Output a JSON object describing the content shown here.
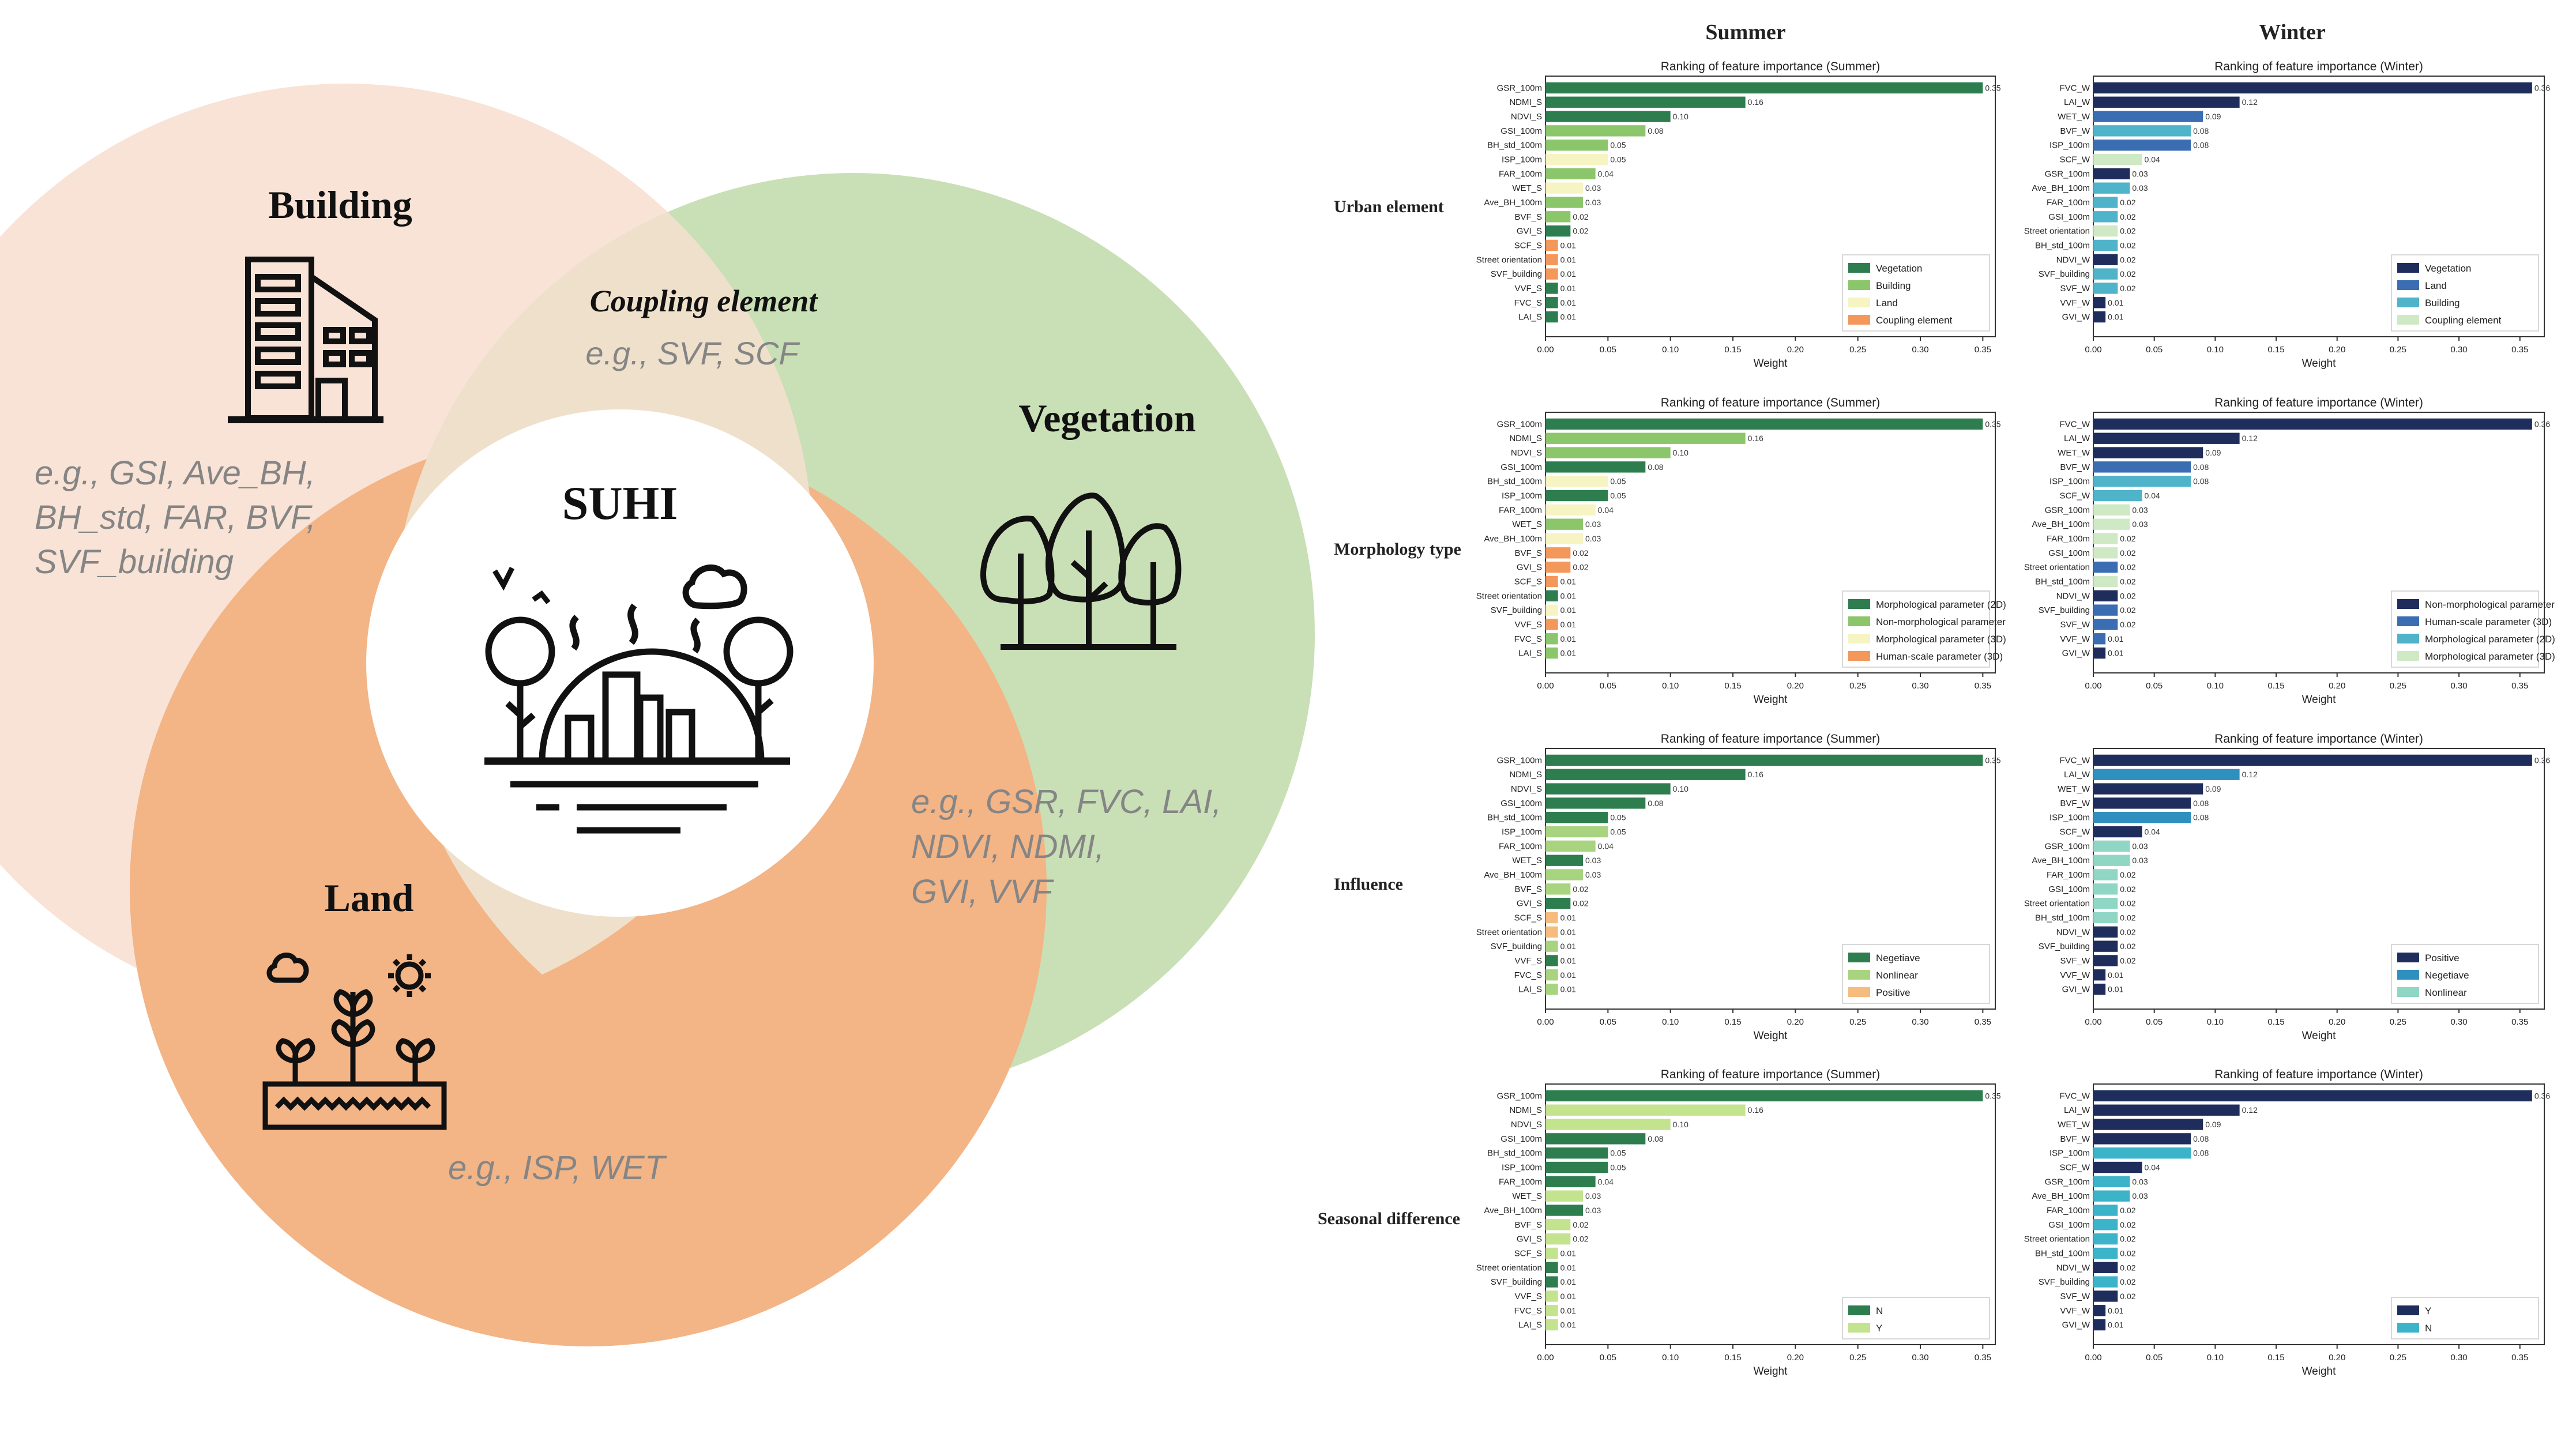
{
  "venn": {
    "building": {
      "title": "Building",
      "examples": [
        "e.g., GSI, Ave_BH,",
        "BH_std, FAR, BVF,",
        "SVF_building"
      ]
    },
    "vegetation": {
      "title": "Vegetation",
      "examples": [
        "e.g., GSR, FVC, LAI,",
        "NDVI, NDMI,",
        "GVI, VVF"
      ]
    },
    "land": {
      "title": "Land",
      "examples": [
        "e.g., ISP, WET"
      ]
    },
    "coupling": {
      "title": "Coupling element",
      "examples": "e.g., SVF, SCF"
    },
    "center": {
      "title": "SUHI"
    },
    "colors": {
      "building": "#f8e3d6",
      "vegetation": "#c9dfb6",
      "land": "#f3b486",
      "overlap": "#efe0cc",
      "center": "#ffffff"
    }
  },
  "columns": {
    "summer": "Summer",
    "winter": "Winter"
  },
  "row_labels": [
    "Urban element",
    "Morphology type",
    "Influence",
    "Seasonal difference"
  ],
  "chart_data": [
    {
      "type": "bar",
      "season": "summer",
      "grouping": "Urban element",
      "title": "Ranking of feature importance (Summer)",
      "xlabel": "Weight",
      "xlim": [
        0,
        0.36
      ],
      "xticks": [
        "0.00",
        "0.05",
        "0.10",
        "0.15",
        "0.20",
        "0.25",
        "0.30",
        "0.35"
      ],
      "categories": [
        "GSR_100m",
        "NDMI_S",
        "NDVI_S",
        "GSI_100m",
        "BH_std_100m",
        "ISP_100m",
        "FAR_100m",
        "WET_S",
        "Ave_BH_100m",
        "BVF_S",
        "GVI_S",
        "SCF_S",
        "Street orientation",
        "SVF_building",
        "VVF_S",
        "FVC_S",
        "LAI_S"
      ],
      "values": [
        0.35,
        0.16,
        0.1,
        0.08,
        0.05,
        0.05,
        0.04,
        0.03,
        0.03,
        0.02,
        0.02,
        0.01,
        0.01,
        0.01,
        0.01,
        0.01,
        0.01
      ],
      "value_labels": [
        "0.35",
        "0.16",
        "0.10",
        "0.08",
        "0.05",
        "0.05",
        "0.04",
        "0.03",
        "0.03",
        "0.02",
        "0.02",
        "0.01",
        "0.01",
        "0.01",
        "0.01",
        "0.01",
        "0.01"
      ],
      "groups": [
        0,
        0,
        0,
        1,
        1,
        2,
        1,
        2,
        1,
        1,
        0,
        3,
        3,
        3,
        0,
        0,
        0
      ],
      "legend": [
        {
          "name": "Vegetation",
          "color": "#2e7d4f"
        },
        {
          "name": "Building",
          "color": "#8cc66b"
        },
        {
          "name": "Land",
          "color": "#f7f4c3"
        },
        {
          "name": "Coupling element",
          "color": "#f4975a"
        }
      ],
      "legend_position": "bottom-right"
    },
    {
      "type": "bar",
      "season": "winter",
      "grouping": "Urban element",
      "title": "Ranking of feature importance (Winter)",
      "xlabel": "Weight",
      "xlim": [
        0,
        0.37
      ],
      "xticks": [
        "0.00",
        "0.05",
        "0.10",
        "0.15",
        "0.20",
        "0.25",
        "0.30",
        "0.35"
      ],
      "categories": [
        "FVC_W",
        "LAI_W",
        "WET_W",
        "BVF_W",
        "ISP_100m",
        "SCF_W",
        "GSR_100m",
        "Ave_BH_100m",
        "FAR_100m",
        "GSI_100m",
        "Street orientation",
        "BH_std_100m",
        "NDVI_W",
        "SVF_building",
        "SVF_W",
        "VVF_W",
        "GVI_W"
      ],
      "values": [
        0.36,
        0.12,
        0.09,
        0.08,
        0.08,
        0.04,
        0.03,
        0.03,
        0.02,
        0.02,
        0.02,
        0.02,
        0.02,
        0.02,
        0.02,
        0.01,
        0.01
      ],
      "value_labels": [
        "0.36",
        "0.12",
        "0.09",
        "0.08",
        "0.08",
        "0.04",
        "0.03",
        "0.03",
        "0.02",
        "0.02",
        "0.02",
        "0.02",
        "0.02",
        "0.02",
        "0.02",
        "0.01",
        "0.01"
      ],
      "groups": [
        0,
        0,
        1,
        2,
        1,
        3,
        0,
        2,
        2,
        2,
        3,
        2,
        0,
        2,
        2,
        0,
        0
      ],
      "legend": [
        {
          "name": "Vegetation",
          "color": "#1f2d5c"
        },
        {
          "name": "Land",
          "color": "#3a6db2"
        },
        {
          "name": "Building",
          "color": "#4fb3c9"
        },
        {
          "name": "Coupling element",
          "color": "#cfe9c5"
        }
      ],
      "legend_position": "bottom-right"
    },
    {
      "type": "bar",
      "season": "summer",
      "grouping": "Morphology type",
      "title": "Ranking of feature importance (Summer)",
      "xlabel": "Weight",
      "xlim": [
        0,
        0.36
      ],
      "xticks": [
        "0.00",
        "0.05",
        "0.10",
        "0.15",
        "0.20",
        "0.25",
        "0.30",
        "0.35"
      ],
      "categories": [
        "GSR_100m",
        "NDMI_S",
        "NDVI_S",
        "GSI_100m",
        "BH_std_100m",
        "ISP_100m",
        "FAR_100m",
        "WET_S",
        "Ave_BH_100m",
        "BVF_S",
        "GVI_S",
        "SCF_S",
        "Street orientation",
        "SVF_building",
        "VVF_S",
        "FVC_S",
        "LAI_S"
      ],
      "values": [
        0.35,
        0.16,
        0.1,
        0.08,
        0.05,
        0.05,
        0.04,
        0.03,
        0.03,
        0.02,
        0.02,
        0.01,
        0.01,
        0.01,
        0.01,
        0.01,
        0.01
      ],
      "value_labels": [
        "0.35",
        "0.16",
        "0.10",
        "0.08",
        "0.05",
        "0.05",
        "0.04",
        "0.03",
        "0.03",
        "0.02",
        "0.02",
        "0.01",
        "0.01",
        "0.01",
        "0.01",
        "0.01",
        "0.01"
      ],
      "groups": [
        0,
        1,
        1,
        0,
        2,
        0,
        2,
        1,
        2,
        3,
        3,
        3,
        0,
        2,
        3,
        1,
        1
      ],
      "legend": [
        {
          "name": "Morphological parameter (2D)",
          "color": "#2e7d4f"
        },
        {
          "name": "Non-morphological parameter",
          "color": "#8cc66b"
        },
        {
          "name": "Morphological parameter (3D)",
          "color": "#f7f4c3"
        },
        {
          "name": "Human-scale parameter (3D)",
          "color": "#f4975a"
        }
      ],
      "legend_position": "bottom-right"
    },
    {
      "type": "bar",
      "season": "winter",
      "grouping": "Morphology type",
      "title": "Ranking of feature importance (Winter)",
      "xlabel": "Weight",
      "xlim": [
        0,
        0.37
      ],
      "xticks": [
        "0.00",
        "0.05",
        "0.10",
        "0.15",
        "0.20",
        "0.25",
        "0.30",
        "0.35"
      ],
      "categories": [
        "FVC_W",
        "LAI_W",
        "WET_W",
        "BVF_W",
        "ISP_100m",
        "SCF_W",
        "GSR_100m",
        "Ave_BH_100m",
        "FAR_100m",
        "GSI_100m",
        "Street orientation",
        "BH_std_100m",
        "NDVI_W",
        "SVF_building",
        "SVF_W",
        "VVF_W",
        "GVI_W"
      ],
      "values": [
        0.36,
        0.12,
        0.09,
        0.08,
        0.08,
        0.04,
        0.03,
        0.03,
        0.02,
        0.02,
        0.02,
        0.02,
        0.02,
        0.02,
        0.02,
        0.01,
        0.01
      ],
      "value_labels": [
        "0.36",
        "0.12",
        "0.09",
        "0.08",
        "0.08",
        "0.04",
        "0.03",
        "0.03",
        "0.02",
        "0.02",
        "0.02",
        "0.02",
        "0.02",
        "0.02",
        "0.02",
        "0.01",
        "0.01"
      ],
      "groups": [
        0,
        0,
        0,
        1,
        2,
        2,
        3,
        3,
        3,
        3,
        1,
        3,
        0,
        1,
        1,
        1,
        0
      ],
      "legend": [
        {
          "name": "Non-morphological parameter",
          "color": "#1f2d5c"
        },
        {
          "name": "Human-scale parameter (3D)",
          "color": "#3a6db2"
        },
        {
          "name": "Morphological parameter (2D)",
          "color": "#4fb3c9"
        },
        {
          "name": "Morphological parameter (3D)",
          "color": "#cfe9c5"
        }
      ],
      "legend_position": "bottom-right"
    },
    {
      "type": "bar",
      "season": "summer",
      "grouping": "Influence",
      "title": "Ranking of feature importance (Summer)",
      "xlabel": "Weight",
      "xlim": [
        0,
        0.36
      ],
      "xticks": [
        "0.00",
        "0.05",
        "0.10",
        "0.15",
        "0.20",
        "0.25",
        "0.30",
        "0.35"
      ],
      "categories": [
        "GSR_100m",
        "NDMI_S",
        "NDVI_S",
        "GSI_100m",
        "BH_std_100m",
        "ISP_100m",
        "FAR_100m",
        "WET_S",
        "Ave_BH_100m",
        "BVF_S",
        "GVI_S",
        "SCF_S",
        "Street orientation",
        "SVF_building",
        "VVF_S",
        "FVC_S",
        "LAI_S"
      ],
      "values": [
        0.35,
        0.16,
        0.1,
        0.08,
        0.05,
        0.05,
        0.04,
        0.03,
        0.03,
        0.02,
        0.02,
        0.01,
        0.01,
        0.01,
        0.01,
        0.01,
        0.01
      ],
      "value_labels": [
        "0.35",
        "0.16",
        "0.10",
        "0.08",
        "0.05",
        "0.05",
        "0.04",
        "0.03",
        "0.03",
        "0.02",
        "0.02",
        "0.01",
        "0.01",
        "0.01",
        "0.01",
        "0.01",
        "0.01"
      ],
      "groups": [
        0,
        0,
        0,
        0,
        0,
        1,
        1,
        0,
        1,
        1,
        0,
        2,
        2,
        1,
        0,
        1,
        1
      ],
      "legend": [
        {
          "name": "Negetiave",
          "color": "#2e7d4f"
        },
        {
          "name": "Nonlinear",
          "color": "#a8d37f"
        },
        {
          "name": "Positive",
          "color": "#f6bc7e"
        }
      ],
      "legend_position": "bottom-right"
    },
    {
      "type": "bar",
      "season": "winter",
      "grouping": "Influence",
      "title": "Ranking of feature importance (Winter)",
      "xlabel": "Weight",
      "xlim": [
        0,
        0.37
      ],
      "xticks": [
        "0.00",
        "0.05",
        "0.10",
        "0.15",
        "0.20",
        "0.25",
        "0.30",
        "0.35"
      ],
      "categories": [
        "FVC_W",
        "LAI_W",
        "WET_W",
        "BVF_W",
        "ISP_100m",
        "SCF_W",
        "GSR_100m",
        "Ave_BH_100m",
        "FAR_100m",
        "GSI_100m",
        "Street orientation",
        "BH_std_100m",
        "NDVI_W",
        "SVF_building",
        "SVF_W",
        "VVF_W",
        "GVI_W"
      ],
      "values": [
        0.36,
        0.12,
        0.09,
        0.08,
        0.08,
        0.04,
        0.03,
        0.03,
        0.02,
        0.02,
        0.02,
        0.02,
        0.02,
        0.02,
        0.02,
        0.01,
        0.01
      ],
      "value_labels": [
        "0.36",
        "0.12",
        "0.09",
        "0.08",
        "0.08",
        "0.04",
        "0.03",
        "0.03",
        "0.02",
        "0.02",
        "0.02",
        "0.02",
        "0.02",
        "0.02",
        "0.02",
        "0.01",
        "0.01"
      ],
      "groups": [
        0,
        1,
        0,
        0,
        1,
        0,
        2,
        2,
        2,
        2,
        2,
        2,
        0,
        0,
        0,
        0,
        0
      ],
      "legend": [
        {
          "name": "Positive",
          "color": "#1f2d5c"
        },
        {
          "name": "Negetiave",
          "color": "#2f8fbf"
        },
        {
          "name": "Nonlinear",
          "color": "#8fd6c4"
        }
      ],
      "legend_position": "bottom-right"
    },
    {
      "type": "bar",
      "season": "summer",
      "grouping": "Seasonal difference",
      "title": "Ranking of feature importance (Summer)",
      "xlabel": "Weight",
      "xlim": [
        0,
        0.36
      ],
      "xticks": [
        "0.00",
        "0.05",
        "0.10",
        "0.15",
        "0.20",
        "0.25",
        "0.30",
        "0.35"
      ],
      "categories": [
        "GSR_100m",
        "NDMI_S",
        "NDVI_S",
        "GSI_100m",
        "BH_std_100m",
        "ISP_100m",
        "FAR_100m",
        "WET_S",
        "Ave_BH_100m",
        "BVF_S",
        "GVI_S",
        "SCF_S",
        "Street orientation",
        "SVF_building",
        "VVF_S",
        "FVC_S",
        "LAI_S"
      ],
      "values": [
        0.35,
        0.16,
        0.1,
        0.08,
        0.05,
        0.05,
        0.04,
        0.03,
        0.03,
        0.02,
        0.02,
        0.01,
        0.01,
        0.01,
        0.01,
        0.01,
        0.01
      ],
      "value_labels": [
        "0.35",
        "0.16",
        "0.10",
        "0.08",
        "0.05",
        "0.05",
        "0.04",
        "0.03",
        "0.03",
        "0.02",
        "0.02",
        "0.01",
        "0.01",
        "0.01",
        "0.01",
        "0.01",
        "0.01"
      ],
      "groups": [
        0,
        1,
        1,
        0,
        0,
        0,
        0,
        1,
        0,
        1,
        1,
        1,
        0,
        0,
        1,
        1,
        1
      ],
      "legend": [
        {
          "name": "N",
          "color": "#2e7d4f"
        },
        {
          "name": "Y",
          "color": "#c3e38f"
        }
      ],
      "legend_position": "bottom-right"
    },
    {
      "type": "bar",
      "season": "winter",
      "grouping": "Seasonal difference",
      "title": "Ranking of feature importance (Winter)",
      "xlabel": "Weight",
      "xlim": [
        0,
        0.37
      ],
      "xticks": [
        "0.00",
        "0.05",
        "0.10",
        "0.15",
        "0.20",
        "0.25",
        "0.30",
        "0.35"
      ],
      "categories": [
        "FVC_W",
        "LAI_W",
        "WET_W",
        "BVF_W",
        "ISP_100m",
        "SCF_W",
        "GSR_100m",
        "Ave_BH_100m",
        "FAR_100m",
        "GSI_100m",
        "Street orientation",
        "BH_std_100m",
        "NDVI_W",
        "SVF_building",
        "SVF_W",
        "VVF_W",
        "GVI_W"
      ],
      "values": [
        0.36,
        0.12,
        0.09,
        0.08,
        0.08,
        0.04,
        0.03,
        0.03,
        0.02,
        0.02,
        0.02,
        0.02,
        0.02,
        0.02,
        0.02,
        0.01,
        0.01
      ],
      "value_labels": [
        "0.36",
        "0.12",
        "0.09",
        "0.08",
        "0.08",
        "0.04",
        "0.03",
        "0.03",
        "0.02",
        "0.02",
        "0.02",
        "0.02",
        "0.02",
        "0.02",
        "0.02",
        "0.01",
        "0.01"
      ],
      "groups": [
        0,
        0,
        0,
        0,
        1,
        0,
        1,
        1,
        1,
        1,
        1,
        1,
        0,
        1,
        0,
        0,
        0
      ],
      "legend": [
        {
          "name": "Y",
          "color": "#1f2d5c"
        },
        {
          "name": "N",
          "color": "#3bb3c9"
        }
      ],
      "legend_position": "bottom-right"
    }
  ]
}
